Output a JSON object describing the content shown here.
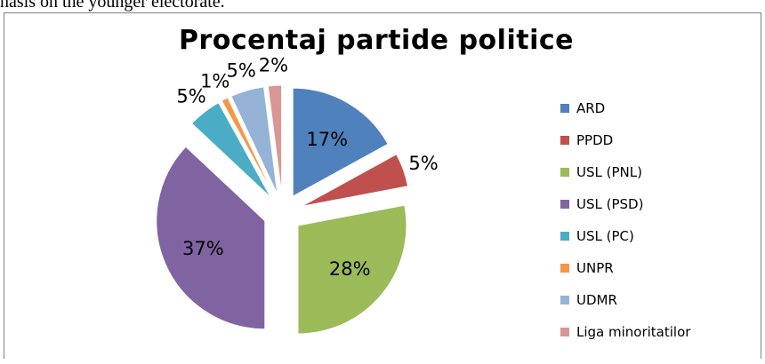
{
  "page_text": "nasis on the younger electorate.",
  "chart_data": {
    "type": "pie",
    "title": "Procentaj partide politice",
    "exploded": true,
    "legend_position": "right",
    "slices": [
      {
        "label": "ARD",
        "value": 17,
        "display": "17%",
        "color": "#4F81BD"
      },
      {
        "label": "PPDD",
        "value": 5,
        "display": "5%",
        "color": "#C0504D"
      },
      {
        "label": "USL (PNL)",
        "value": 28,
        "display": "28%",
        "color": "#9BBB59"
      },
      {
        "label": "USL (PSD)",
        "value": 37,
        "display": "37%",
        "color": "#8064A2"
      },
      {
        "label": "USL (PC)",
        "value": 5,
        "display": "5%",
        "color": "#4BACC6"
      },
      {
        "label": "UNPR",
        "value": 1,
        "display": "1%",
        "color": "#F79646"
      },
      {
        "label": "UDMR",
        "value": 5,
        "display": "5%",
        "color": "#95B3D7"
      },
      {
        "label": "Liga minoritatilor",
        "value": 2,
        "display": "2%",
        "color": "#D99694"
      }
    ]
  }
}
